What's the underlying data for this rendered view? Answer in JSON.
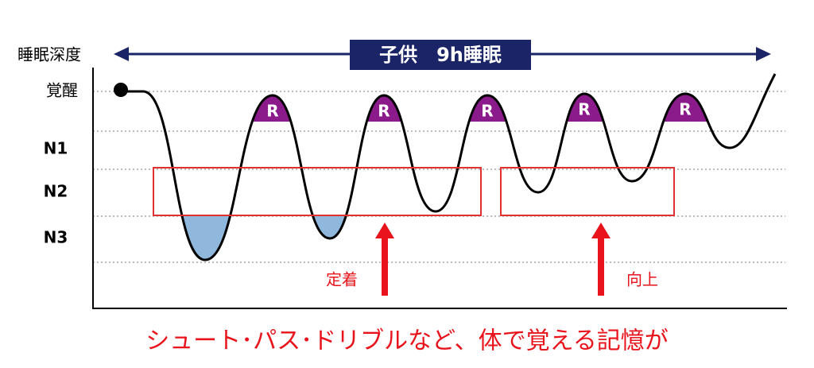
{
  "axis_title": "睡眠深度",
  "banner": "子供　9h睡眠",
  "levels": [
    "覚醒",
    "N1",
    "N2",
    "N3"
  ],
  "rem_labels": [
    "R",
    "R",
    "R",
    "R",
    "R"
  ],
  "annotations": [
    "定着",
    "向上"
  ],
  "caption": "シュート･パス･ドリブルなど、体で覚える記憶が"
}
